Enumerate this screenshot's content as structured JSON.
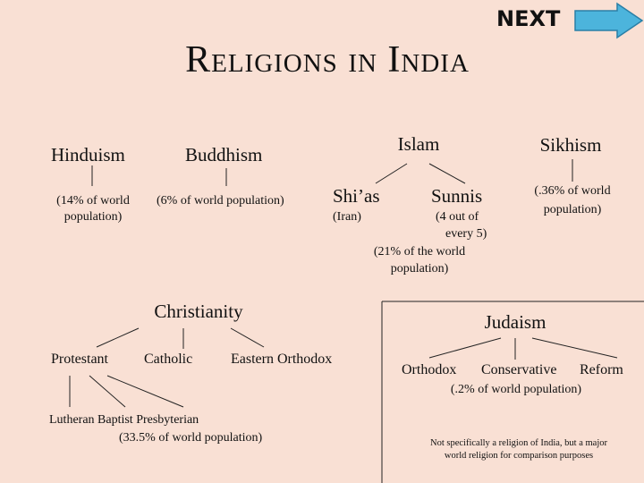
{
  "header": {
    "title": "Religions in India",
    "next": "NEXT"
  },
  "hinduism": {
    "name": "Hinduism",
    "notes": [
      "(14% of world",
      "population)"
    ]
  },
  "buddhism": {
    "name": "Buddhism",
    "notes": [
      "(6% of world population)"
    ]
  },
  "islam": {
    "name": "Islam",
    "branches": [
      {
        "name": "Shi’as",
        "notes": [
          "(Iran)"
        ]
      },
      {
        "name": "Sunnis",
        "notes": [
          "(4 out of",
          "every 5)",
          "(21% of the world",
          "population)"
        ]
      }
    ]
  },
  "sikhism": {
    "name": "Sikhism",
    "notes": [
      "(.36% of world",
      "population)"
    ]
  },
  "christianity": {
    "name": "Christianity",
    "branches": [
      "Protestant",
      "Catholic",
      "Eastern Orthodox"
    ],
    "denominations": "Lutheran Baptist Presbyterian",
    "note": "(33.5% of world population)"
  },
  "judaism": {
    "name": "Judaism",
    "branches": [
      "Orthodox",
      "Conservative",
      "Reform"
    ],
    "note": "(.2% of world population)",
    "footnote": [
      "Not specifically a religion of India, but a major",
      "world religion for comparison purposes"
    ]
  }
}
